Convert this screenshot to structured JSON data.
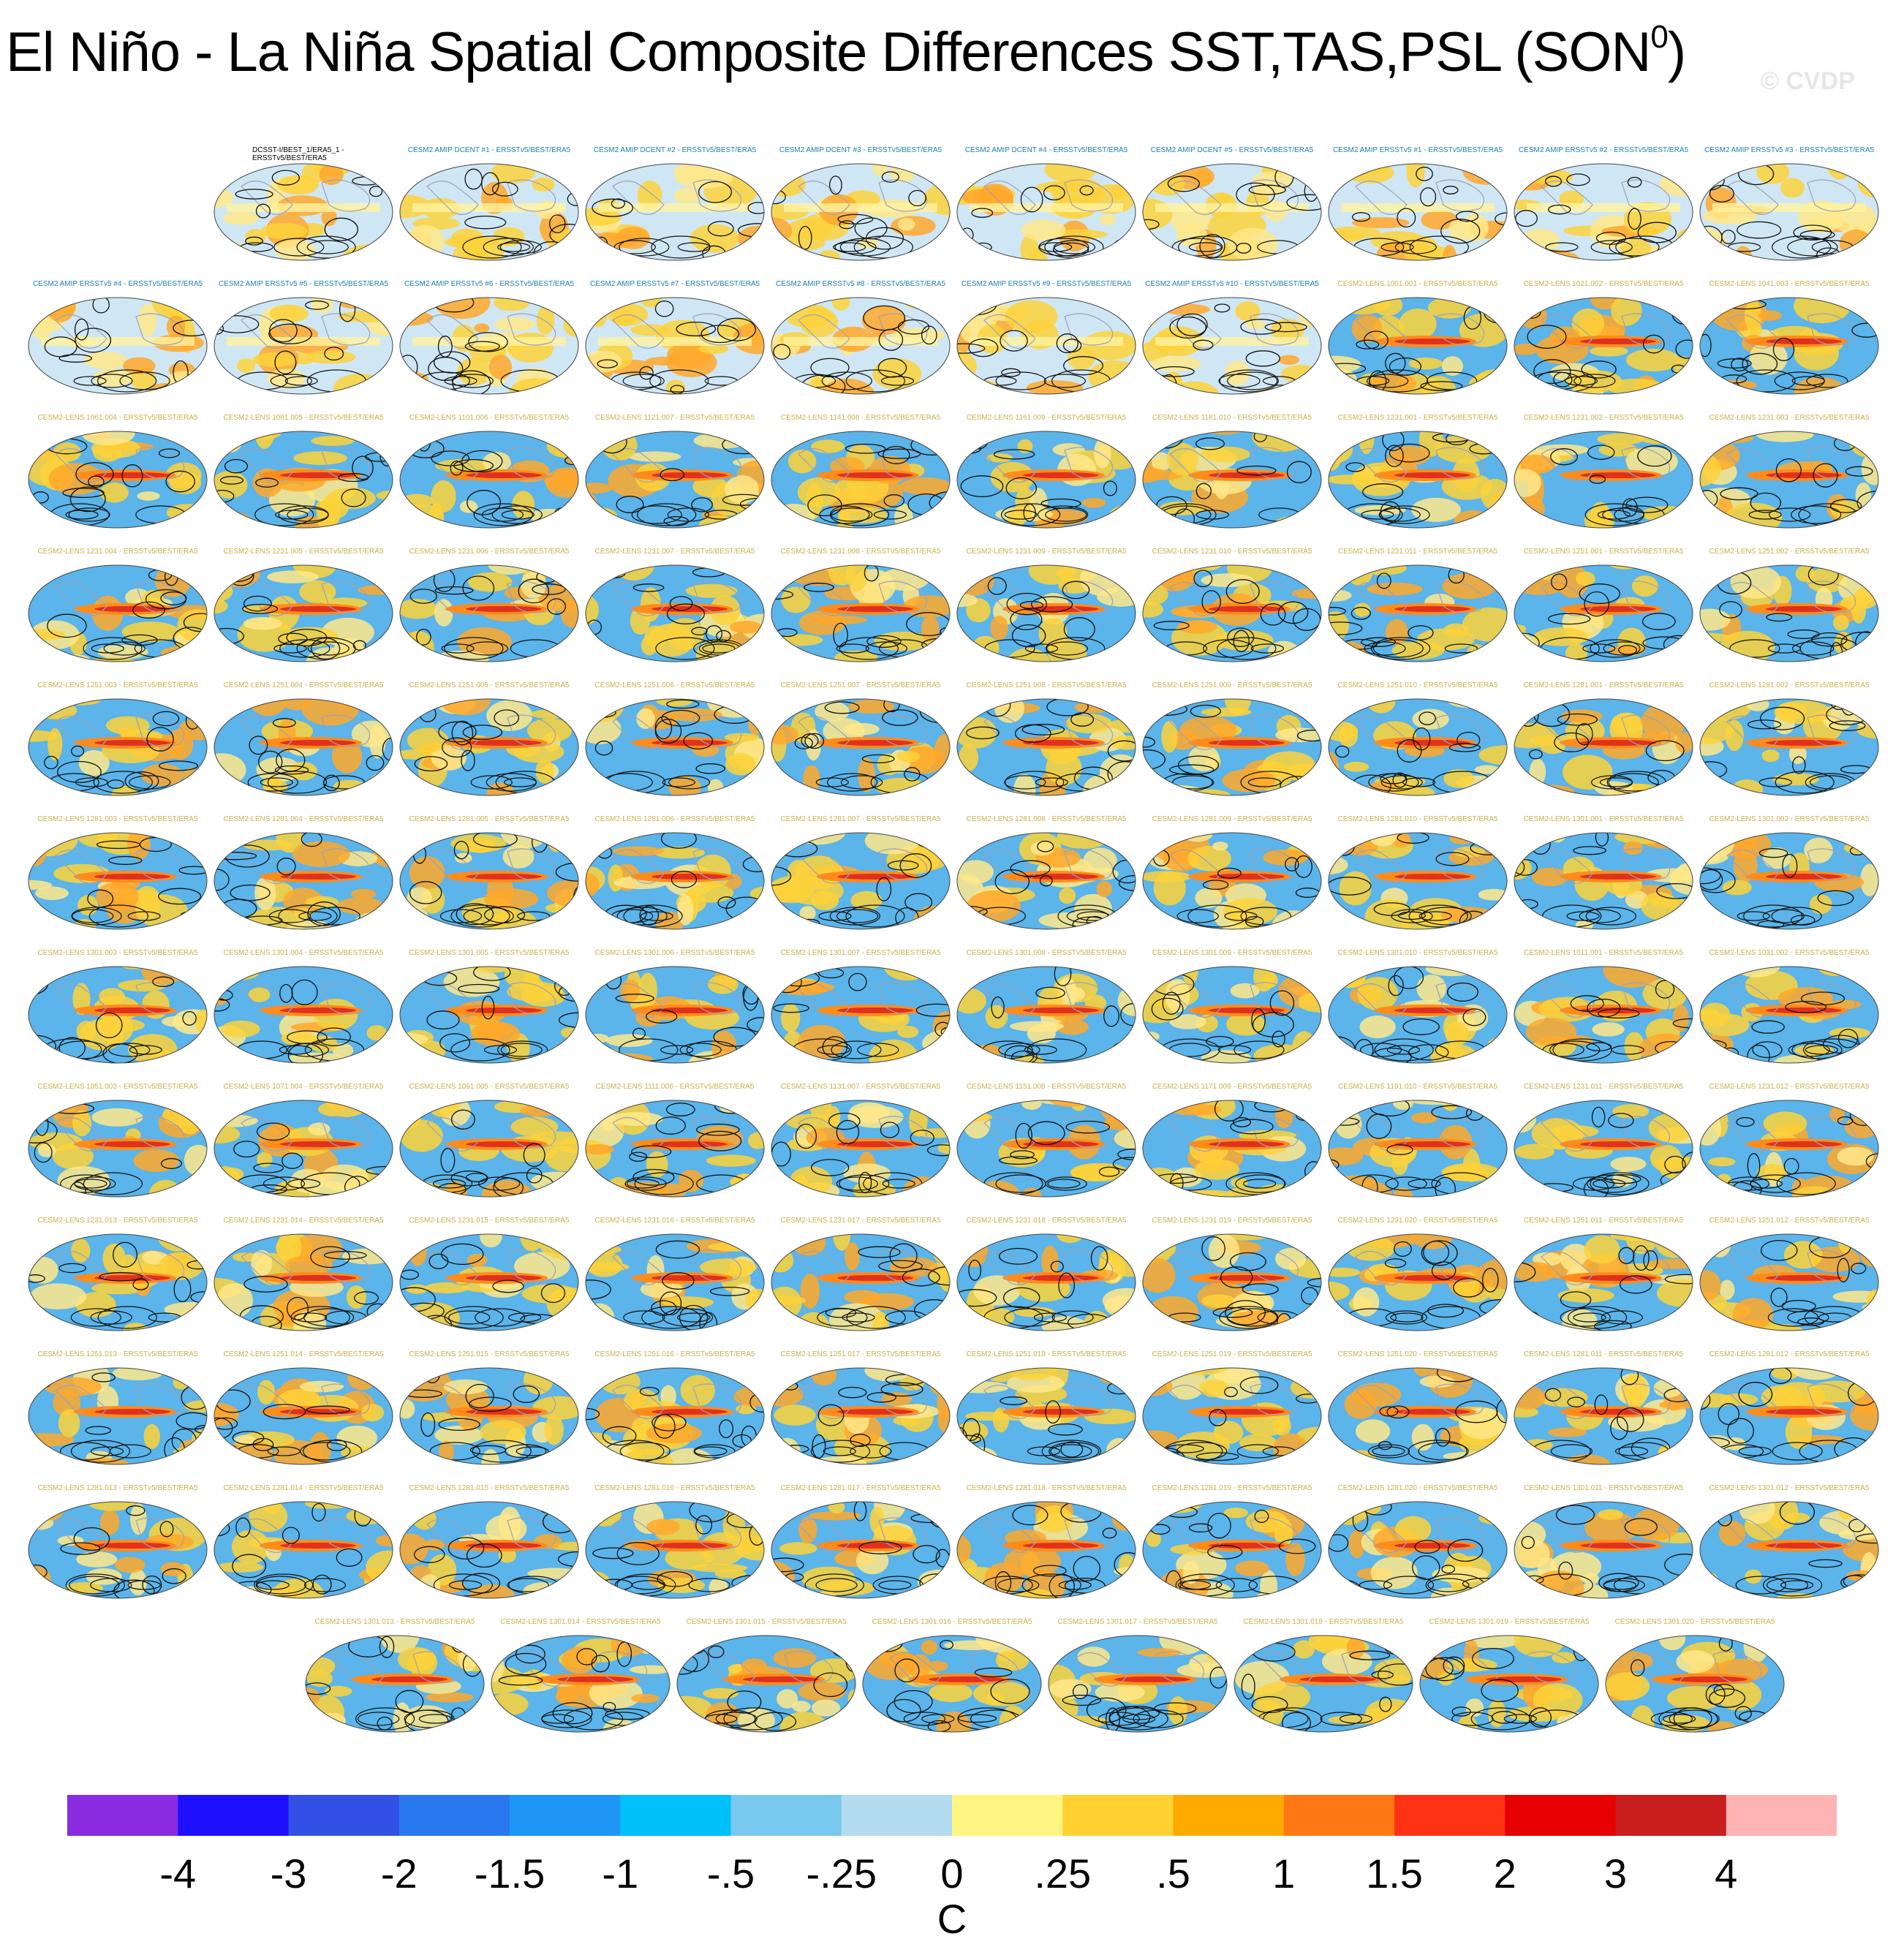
{
  "figure": {
    "title": "El Niño - La Niña Spatial Composite Differences SST,TAS,PSL (SON",
    "title_superscript": "0",
    "title_close": ")",
    "watermark": "© CVDP"
  },
  "colors": {
    "amip_label": "#1e7fb0",
    "lens_label": "#c9b04a",
    "obs_label": "#000000",
    "ocean_cool": "#5bb4ea",
    "ocean_warm": "#fdd23a",
    "enso_tongue": "#e0301e",
    "contour": "#111111",
    "land_outline": "#a0a0b4"
  },
  "panels": [
    {
      "label": "DCSST-I/BEST_1/ERA5_1 - ERSSTv5/BEST/ERA5",
      "group": "obs",
      "enso": 0
    },
    {
      "label": "CESM2 AMIP DCENT #1 - ERSSTv5/BEST/ERA5",
      "group": "amip",
      "enso": 0
    },
    {
      "label": "CESM2 AMIP DCENT #2 - ERSSTv5/BEST/ERA5",
      "group": "amip",
      "enso": 0
    },
    {
      "label": "CESM2 AMIP DCENT #3 - ERSSTv5/BEST/ERA5",
      "group": "amip",
      "enso": 0
    },
    {
      "label": "CESM2 AMIP DCENT #4 - ERSSTv5/BEST/ERA5",
      "group": "amip",
      "enso": 0
    },
    {
      "label": "CESM2 AMIP DCENT #5 - ERSSTv5/BEST/ERA5",
      "group": "amip",
      "enso": 0
    },
    {
      "label": "CESM2 AMIP ERSSTv5 #1 - ERSSTv5/BEST/ERA5",
      "group": "amip",
      "enso": 0
    },
    {
      "label": "CESM2 AMIP ERSSTv5 #2 - ERSSTv5/BEST/ERA5",
      "group": "amip",
      "enso": 0
    },
    {
      "label": "CESM2 AMIP ERSSTv5 #3 - ERSSTv5/BEST/ERA5",
      "group": "amip",
      "enso": 0
    },
    {
      "label": "CESM2 AMIP ERSSTv5 #4 - ERSSTv5/BEST/ERA5",
      "group": "amip",
      "enso": 0
    },
    {
      "label": "CESM2 AMIP ERSSTv5 #5 - ERSSTv5/BEST/ERA5",
      "group": "amip",
      "enso": 0
    },
    {
      "label": "CESM2 AMIP ERSSTv5 #6 - ERSSTv5/BEST/ERA5",
      "group": "amip",
      "enso": 0
    },
    {
      "label": "CESM2 AMIP ERSSTv5 #7 - ERSSTv5/BEST/ERA5",
      "group": "amip",
      "enso": 0
    },
    {
      "label": "CESM2 AMIP ERSSTv5 #8 - ERSSTv5/BEST/ERA5",
      "group": "amip",
      "enso": 0
    },
    {
      "label": "CESM2 AMIP ERSSTv5 #9 - ERSSTv5/BEST/ERA5",
      "group": "amip",
      "enso": 0
    },
    {
      "label": "CESM2 AMIP ERSSTv5 #10 - ERSSTv5/BEST/ERA5",
      "group": "amip",
      "enso": 0
    },
    {
      "label": "CESM2-LENS 1001.001 - ERSSTv5/BEST/ERA5",
      "group": "lens",
      "enso": 1
    },
    {
      "label": "CESM2-LENS 1021.002 - ERSSTv5/BEST/ERA5",
      "group": "lens",
      "enso": 1
    },
    {
      "label": "CESM2-LENS 1041.003 - ERSSTv5/BEST/ERA5",
      "group": "lens",
      "enso": 1
    },
    {
      "label": "CESM2-LENS 1061.004 - ERSSTv5/BEST/ERA5",
      "group": "lens",
      "enso": 1
    },
    {
      "label": "CESM2-LENS 1081.005 - ERSSTv5/BEST/ERA5",
      "group": "lens",
      "enso": 1
    },
    {
      "label": "CESM2-LENS 1101.006 - ERSSTv5/BEST/ERA5",
      "group": "lens",
      "enso": 1
    },
    {
      "label": "CESM2-LENS 1121.007 - ERSSTv5/BEST/ERA5",
      "group": "lens",
      "enso": 1
    },
    {
      "label": "CESM2-LENS 1141.008 - ERSSTv5/BEST/ERA5",
      "group": "lens",
      "enso": 1
    },
    {
      "label": "CESM2-LENS 1161.009 - ERSSTv5/BEST/ERA5",
      "group": "lens",
      "enso": 1
    },
    {
      "label": "CESM2-LENS 1181.010 - ERSSTv5/BEST/ERA5",
      "group": "lens",
      "enso": 1
    },
    {
      "label": "CESM2-LENS 1231.001 - ERSSTv5/BEST/ERA5",
      "group": "lens",
      "enso": 1
    },
    {
      "label": "CESM2-LENS 1231.002 - ERSSTv5/BEST/ERA5",
      "group": "lens",
      "enso": 1
    },
    {
      "label": "CESM2-LENS 1231.003 - ERSSTv5/BEST/ERA5",
      "group": "lens",
      "enso": 1
    },
    {
      "label": "CESM2-LENS 1231.004 - ERSSTv5/BEST/ERA5",
      "group": "lens",
      "enso": 1
    },
    {
      "label": "CESM2-LENS 1231.005 - ERSSTv5/BEST/ERA5",
      "group": "lens",
      "enso": 1
    },
    {
      "label": "CESM2-LENS 1231.006 - ERSSTv5/BEST/ERA5",
      "group": "lens",
      "enso": 1
    },
    {
      "label": "CESM2-LENS 1231.007 - ERSSTv5/BEST/ERA5",
      "group": "lens",
      "enso": 1
    },
    {
      "label": "CESM2-LENS 1231.008 - ERSSTv5/BEST/ERA5",
      "group": "lens",
      "enso": 1
    },
    {
      "label": "CESM2-LENS 1231.009 - ERSSTv5/BEST/ERA5",
      "group": "lens",
      "enso": 1
    },
    {
      "label": "CESM2-LENS 1231.010 - ERSSTv5/BEST/ERA5",
      "group": "lens",
      "enso": 1
    },
    {
      "label": "CESM2-LENS 1231.011 - ERSSTv5/BEST/ERA5",
      "group": "lens",
      "enso": 1
    },
    {
      "label": "CESM2-LENS 1251.001 - ERSSTv5/BEST/ERA5",
      "group": "lens",
      "enso": 1
    },
    {
      "label": "CESM2-LENS 1251.002 - ERSSTv5/BEST/ERA5",
      "group": "lens",
      "enso": 1
    },
    {
      "label": "CESM2-LENS 1251.003 - ERSSTv5/BEST/ERA5",
      "group": "lens",
      "enso": 1
    },
    {
      "label": "CESM2-LENS 1251.004 - ERSSTv5/BEST/ERA5",
      "group": "lens",
      "enso": 1
    },
    {
      "label": "CESM2-LENS 1251.005 - ERSSTv5/BEST/ERA5",
      "group": "lens",
      "enso": 1
    },
    {
      "label": "CESM2-LENS 1251.006 - ERSSTv5/BEST/ERA5",
      "group": "lens",
      "enso": 1
    },
    {
      "label": "CESM2-LENS 1251.007 - ERSSTv5/BEST/ERA5",
      "group": "lens",
      "enso": 1
    },
    {
      "label": "CESM2-LENS 1251.008 - ERSSTv5/BEST/ERA5",
      "group": "lens",
      "enso": 1
    },
    {
      "label": "CESM2-LENS 1251.009 - ERSSTv5/BEST/ERA5",
      "group": "lens",
      "enso": 1
    },
    {
      "label": "CESM2-LENS 1251.010 - ERSSTv5/BEST/ERA5",
      "group": "lens",
      "enso": 1
    },
    {
      "label": "CESM2-LENS 1281.001 - ERSSTv5/BEST/ERA5",
      "group": "lens",
      "enso": 1
    },
    {
      "label": "CESM2-LENS 1281.002 - ERSSTv5/BEST/ERA5",
      "group": "lens",
      "enso": 1
    },
    {
      "label": "CESM2-LENS 1281.003 - ERSSTv5/BEST/ERA5",
      "group": "lens",
      "enso": 1
    },
    {
      "label": "CESM2-LENS 1281.004 - ERSSTv5/BEST/ERA5",
      "group": "lens",
      "enso": 1
    },
    {
      "label": "CESM2-LENS 1281.005 - ERSSTv5/BEST/ERA5",
      "group": "lens",
      "enso": 1
    },
    {
      "label": "CESM2-LENS 1281.006 - ERSSTv5/BEST/ERA5",
      "group": "lens",
      "enso": 1
    },
    {
      "label": "CESM2-LENS 1281.007 - ERSSTv5/BEST/ERA5",
      "group": "lens",
      "enso": 1
    },
    {
      "label": "CESM2-LENS 1281.008 - ERSSTv5/BEST/ERA5",
      "group": "lens",
      "enso": 1
    },
    {
      "label": "CESM2-LENS 1281.009 - ERSSTv5/BEST/ERA5",
      "group": "lens",
      "enso": 1
    },
    {
      "label": "CESM2-LENS 1281.010 - ERSSTv5/BEST/ERA5",
      "group": "lens",
      "enso": 1
    },
    {
      "label": "CESM2-LENS 1301.001 - ERSSTv5/BEST/ERA5",
      "group": "lens",
      "enso": 1
    },
    {
      "label": "CESM2-LENS 1301.002 - ERSSTv5/BEST/ERA5",
      "group": "lens",
      "enso": 1
    },
    {
      "label": "CESM2-LENS 1301.003 - ERSSTv5/BEST/ERA5",
      "group": "lens",
      "enso": 1
    },
    {
      "label": "CESM2-LENS 1301.004 - ERSSTv5/BEST/ERA5",
      "group": "lens",
      "enso": 1
    },
    {
      "label": "CESM2-LENS 1301.005 - ERSSTv5/BEST/ERA5",
      "group": "lens",
      "enso": 1
    },
    {
      "label": "CESM2-LENS 1301.006 - ERSSTv5/BEST/ERA5",
      "group": "lens",
      "enso": 1
    },
    {
      "label": "CESM2-LENS 1301.007 - ERSSTv5/BEST/ERA5",
      "group": "lens",
      "enso": 1
    },
    {
      "label": "CESM2-LENS 1301.008 - ERSSTv5/BEST/ERA5",
      "group": "lens",
      "enso": 1
    },
    {
      "label": "CESM2-LENS 1301.009 - ERSSTv5/BEST/ERA5",
      "group": "lens",
      "enso": 1
    },
    {
      "label": "CESM2-LENS 1301.010 - ERSSTv5/BEST/ERA5",
      "group": "lens",
      "enso": 1
    },
    {
      "label": "CESM2-LENS 1011.001 - ERSSTv5/BEST/ERA5",
      "group": "lens",
      "enso": 1
    },
    {
      "label": "CESM2-LENS 1031.002 - ERSSTv5/BEST/ERA5",
      "group": "lens",
      "enso": 1
    },
    {
      "label": "CESM2-LENS 1051.003 - ERSSTv5/BEST/ERA5",
      "group": "lens",
      "enso": 1
    },
    {
      "label": "CESM2-LENS 1071.004 - ERSSTv5/BEST/ERA5",
      "group": "lens",
      "enso": 1
    },
    {
      "label": "CESM2-LENS 1091.005 - ERSSTv5/BEST/ERA5",
      "group": "lens",
      "enso": 1
    },
    {
      "label": "CESM2-LENS 1111.006 - ERSSTv5/BEST/ERA5",
      "group": "lens",
      "enso": 1
    },
    {
      "label": "CESM2-LENS 1131.007 - ERSSTv5/BEST/ERA5",
      "group": "lens",
      "enso": 1
    },
    {
      "label": "CESM2-LENS 1151.008 - ERSSTv5/BEST/ERA5",
      "group": "lens",
      "enso": 1
    },
    {
      "label": "CESM2-LENS 1171.009 - ERSSTv5/BEST/ERA5",
      "group": "lens",
      "enso": 1
    },
    {
      "label": "CESM2-LENS 1191.010 - ERSSTv5/BEST/ERA5",
      "group": "lens",
      "enso": 1
    },
    {
      "label": "CESM2-LENS 1231.011 - ERSSTv5/BEST/ERA5",
      "group": "lens",
      "enso": 1
    },
    {
      "label": "CESM2-LENS 1231.012 - ERSSTv5/BEST/ERA5",
      "group": "lens",
      "enso": 1
    },
    {
      "label": "CESM2-LENS 1231.013 - ERSSTv5/BEST/ERA5",
      "group": "lens",
      "enso": 1
    },
    {
      "label": "CESM2-LENS 1231.014 - ERSSTv5/BEST/ERA5",
      "group": "lens",
      "enso": 1
    },
    {
      "label": "CESM2-LENS 1231.015 - ERSSTv5/BEST/ERA5",
      "group": "lens",
      "enso": 1
    },
    {
      "label": "CESM2-LENS 1231.016 - ERSSTv5/BEST/ERA5",
      "group": "lens",
      "enso": 1
    },
    {
      "label": "CESM2-LENS 1231.017 - ERSSTv5/BEST/ERA5",
      "group": "lens",
      "enso": 1
    },
    {
      "label": "CESM2-LENS 1231.018 - ERSSTv5/BEST/ERA5",
      "group": "lens",
      "enso": 1
    },
    {
      "label": "CESM2-LENS 1231.019 - ERSSTv5/BEST/ERA5",
      "group": "lens",
      "enso": 1
    },
    {
      "label": "CESM2-LENS 1231.020 - ERSSTv5/BEST/ERA5",
      "group": "lens",
      "enso": 1
    },
    {
      "label": "CESM2-LENS 1251.011 - ERSSTv5/BEST/ERA5",
      "group": "lens",
      "enso": 1
    },
    {
      "label": "CESM2-LENS 1251.012 - ERSSTv5/BEST/ERA5",
      "group": "lens",
      "enso": 1
    },
    {
      "label": "CESM2-LENS 1251.013 - ERSSTv5/BEST/ERA5",
      "group": "lens",
      "enso": 1
    },
    {
      "label": "CESM2-LENS 1251.014 - ERSSTv5/BEST/ERA5",
      "group": "lens",
      "enso": 1
    },
    {
      "label": "CESM2-LENS 1251.015 - ERSSTv5/BEST/ERA5",
      "group": "lens",
      "enso": 1
    },
    {
      "label": "CESM2-LENS 1251.016 - ERSSTv5/BEST/ERA5",
      "group": "lens",
      "enso": 1
    },
    {
      "label": "CESM2-LENS 1251.017 - ERSSTv5/BEST/ERA5",
      "group": "lens",
      "enso": 1
    },
    {
      "label": "CESM2-LENS 1251.018 - ERSSTv5/BEST/ERA5",
      "group": "lens",
      "enso": 1
    },
    {
      "label": "CESM2-LENS 1251.019 - ERSSTv5/BEST/ERA5",
      "group": "lens",
      "enso": 1
    },
    {
      "label": "CESM2-LENS 1251.020 - ERSSTv5/BEST/ERA5",
      "group": "lens",
      "enso": 1
    },
    {
      "label": "CESM2-LENS 1281.011 - ERSSTv5/BEST/ERA5",
      "group": "lens",
      "enso": 1
    },
    {
      "label": "CESM2-LENS 1281.012 - ERSSTv5/BEST/ERA5",
      "group": "lens",
      "enso": 1
    },
    {
      "label": "CESM2-LENS 1281.013 - ERSSTv5/BEST/ERA5",
      "group": "lens",
      "enso": 1
    },
    {
      "label": "CESM2-LENS 1281.014 - ERSSTv5/BEST/ERA5",
      "group": "lens",
      "enso": 1
    },
    {
      "label": "CESM2-LENS 1281.015 - ERSSTv5/BEST/ERA5",
      "group": "lens",
      "enso": 1
    },
    {
      "label": "CESM2-LENS 1281.016 - ERSSTv5/BEST/ERA5",
      "group": "lens",
      "enso": 1
    },
    {
      "label": "CESM2-LENS 1281.017 - ERSSTv5/BEST/ERA5",
      "group": "lens",
      "enso": 1
    },
    {
      "label": "CESM2-LENS 1281.018 - ERSSTv5/BEST/ERA5",
      "group": "lens",
      "enso": 1
    },
    {
      "label": "CESM2-LENS 1281.019 - ERSSTv5/BEST/ERA5",
      "group": "lens",
      "enso": 1
    },
    {
      "label": "CESM2-LENS 1281.020 - ERSSTv5/BEST/ERA5",
      "group": "lens",
      "enso": 1
    },
    {
      "label": "CESM2-LENS 1301.011 - ERSSTv5/BEST/ERA5",
      "group": "lens",
      "enso": 1
    },
    {
      "label": "CESM2-LENS 1301.012 - ERSSTv5/BEST/ERA5",
      "group": "lens",
      "enso": 1
    },
    {
      "label": "CESM2-LENS 1301.013 - ERSSTv5/BEST/ERA5",
      "group": "lens",
      "enso": 1
    },
    {
      "label": "CESM2-LENS 1301.014 - ERSSTv5/BEST/ERA5",
      "group": "lens",
      "enso": 1
    },
    {
      "label": "CESM2-LENS 1301.015 - ERSSTv5/BEST/ERA5",
      "group": "lens",
      "enso": 1
    },
    {
      "label": "CESM2-LENS 1301.016 - ERSSTv5/BEST/ERA5",
      "group": "lens",
      "enso": 1
    },
    {
      "label": "CESM2-LENS 1301.017 - ERSSTv5/BEST/ERA5",
      "group": "lens",
      "enso": 1
    },
    {
      "label": "CESM2-LENS 1301.018 - ERSSTv5/BEST/ERA5",
      "group": "lens",
      "enso": 1
    },
    {
      "label": "CESM2-LENS 1301.019 - ERSSTv5/BEST/ERA5",
      "group": "lens",
      "enso": 1
    },
    {
      "label": "CESM2-LENS 1301.020 - ERSSTv5/BEST/ERA5",
      "group": "lens",
      "enso": 1
    }
  ],
  "colorbar": {
    "colors": [
      "#8a2be2",
      "#1e10ff",
      "#3250e6",
      "#2878f0",
      "#1e96f5",
      "#00c0fa",
      "#78c8f0",
      "#b4dcf0",
      "#fff582",
      "#ffd232",
      "#ffaa00",
      "#ff7814",
      "#ff3214",
      "#e60000",
      "#c81e1e",
      "#ffb4b4"
    ],
    "ticks": [
      "-4",
      "-3",
      "-2",
      "-1.5",
      "-1",
      "-.5",
      "-.25",
      "0",
      ".25",
      ".5",
      "1",
      "1.5",
      "2",
      "3",
      "4"
    ],
    "units": "C"
  }
}
